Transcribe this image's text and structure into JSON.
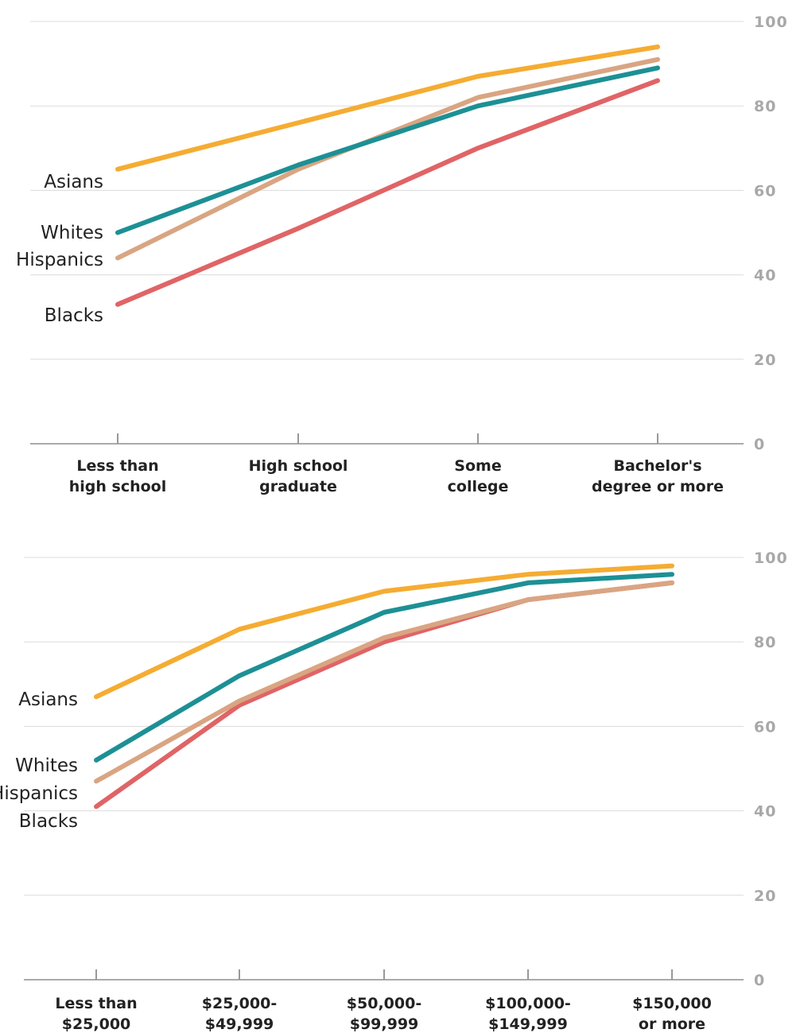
{
  "chart_data": [
    {
      "type": "line",
      "categories": [
        [
          "Less than",
          "high school"
        ],
        [
          "High school",
          "graduate"
        ],
        [
          "Some",
          "college"
        ],
        [
          "Bachelor's",
          "degree or more"
        ]
      ],
      "ylim": [
        0,
        100
      ],
      "yticks": [
        0,
        20,
        40,
        60,
        80,
        100
      ],
      "grid": true,
      "series": [
        {
          "name": "Asians",
          "color": "#f5ac32",
          "values": [
            65,
            76,
            87,
            94
          ]
        },
        {
          "name": "Whites",
          "color": "#1d9095",
          "values": [
            50,
            66,
            80,
            89
          ]
        },
        {
          "name": "Hispanics",
          "color": "#d9a582",
          "values": [
            44,
            65,
            82,
            91
          ]
        },
        {
          "name": "Blacks",
          "color": "#e06466",
          "values": [
            33,
            51,
            70,
            86
          ]
        }
      ]
    },
    {
      "type": "line",
      "categories": [
        [
          "Less than",
          "$25,000"
        ],
        [
          "$25,000-",
          "$49,999"
        ],
        [
          "$50,000-",
          "$99,999"
        ],
        [
          "$100,000-",
          "$149,999"
        ],
        [
          "$150,000",
          "or more"
        ]
      ],
      "ylim": [
        0,
        100
      ],
      "yticks": [
        0,
        20,
        40,
        60,
        80,
        100
      ],
      "grid": true,
      "series": [
        {
          "name": "Asians",
          "color": "#f5ac32",
          "values": [
            67,
            83,
            92,
            96,
            98
          ]
        },
        {
          "name": "Whites",
          "color": "#1d9095",
          "values": [
            52,
            72,
            87,
            94,
            96
          ]
        },
        {
          "name": "Hispanics",
          "color": "#d9a582",
          "values": [
            47,
            66,
            81,
            90,
            94
          ]
        },
        {
          "name": "Blacks",
          "color": "#e06466",
          "values": [
            41,
            65,
            80,
            90,
            94
          ]
        }
      ]
    }
  ]
}
